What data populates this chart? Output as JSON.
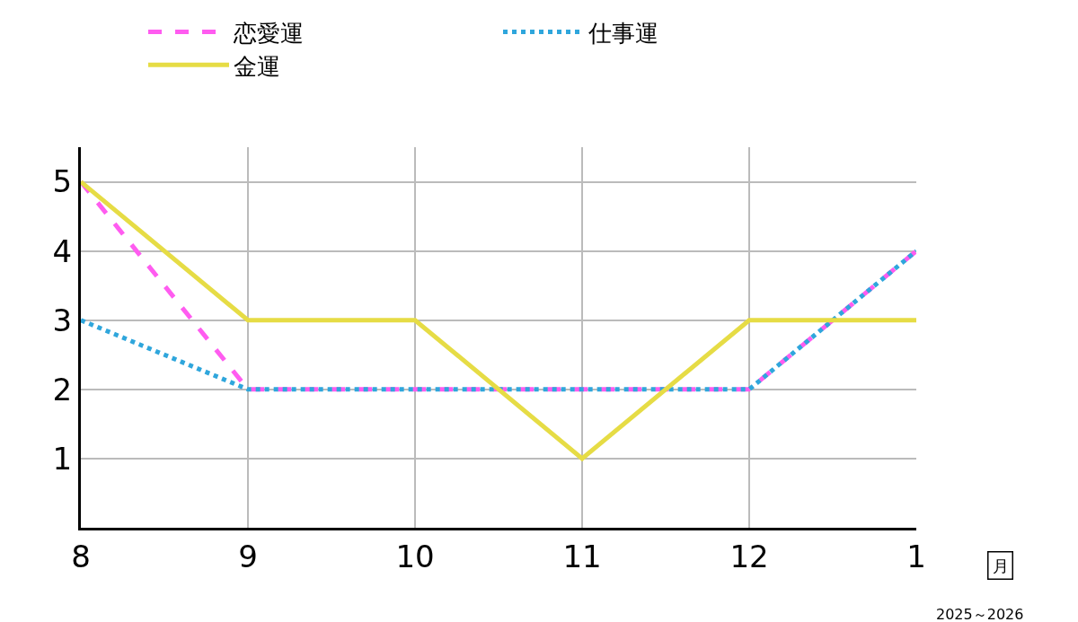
{
  "chart_data": {
    "type": "line",
    "xlabel": "月",
    "categories": [
      "8",
      "9",
      "10",
      "11",
      "12",
      "1"
    ],
    "series": [
      {
        "name": "恋愛運",
        "color": "#ff5cf0",
        "line_style": "dashed",
        "values": [
          5,
          2,
          2,
          2,
          2,
          4
        ]
      },
      {
        "name": "仕事運",
        "color": "#2fa6dc",
        "line_style": "dotted",
        "values": [
          3,
          2,
          2,
          2,
          2,
          4
        ]
      },
      {
        "name": "金運",
        "color": "#e6dc45",
        "line_style": "solid",
        "values": [
          5,
          3,
          3,
          1,
          3,
          3
        ]
      }
    ],
    "ylim": [
      0,
      5.5
    ],
    "yticks": [
      1,
      2,
      3,
      4,
      5
    ],
    "grid": true,
    "legend": "top",
    "marker": "none",
    "annotations": [
      "2025～2026"
    ]
  }
}
